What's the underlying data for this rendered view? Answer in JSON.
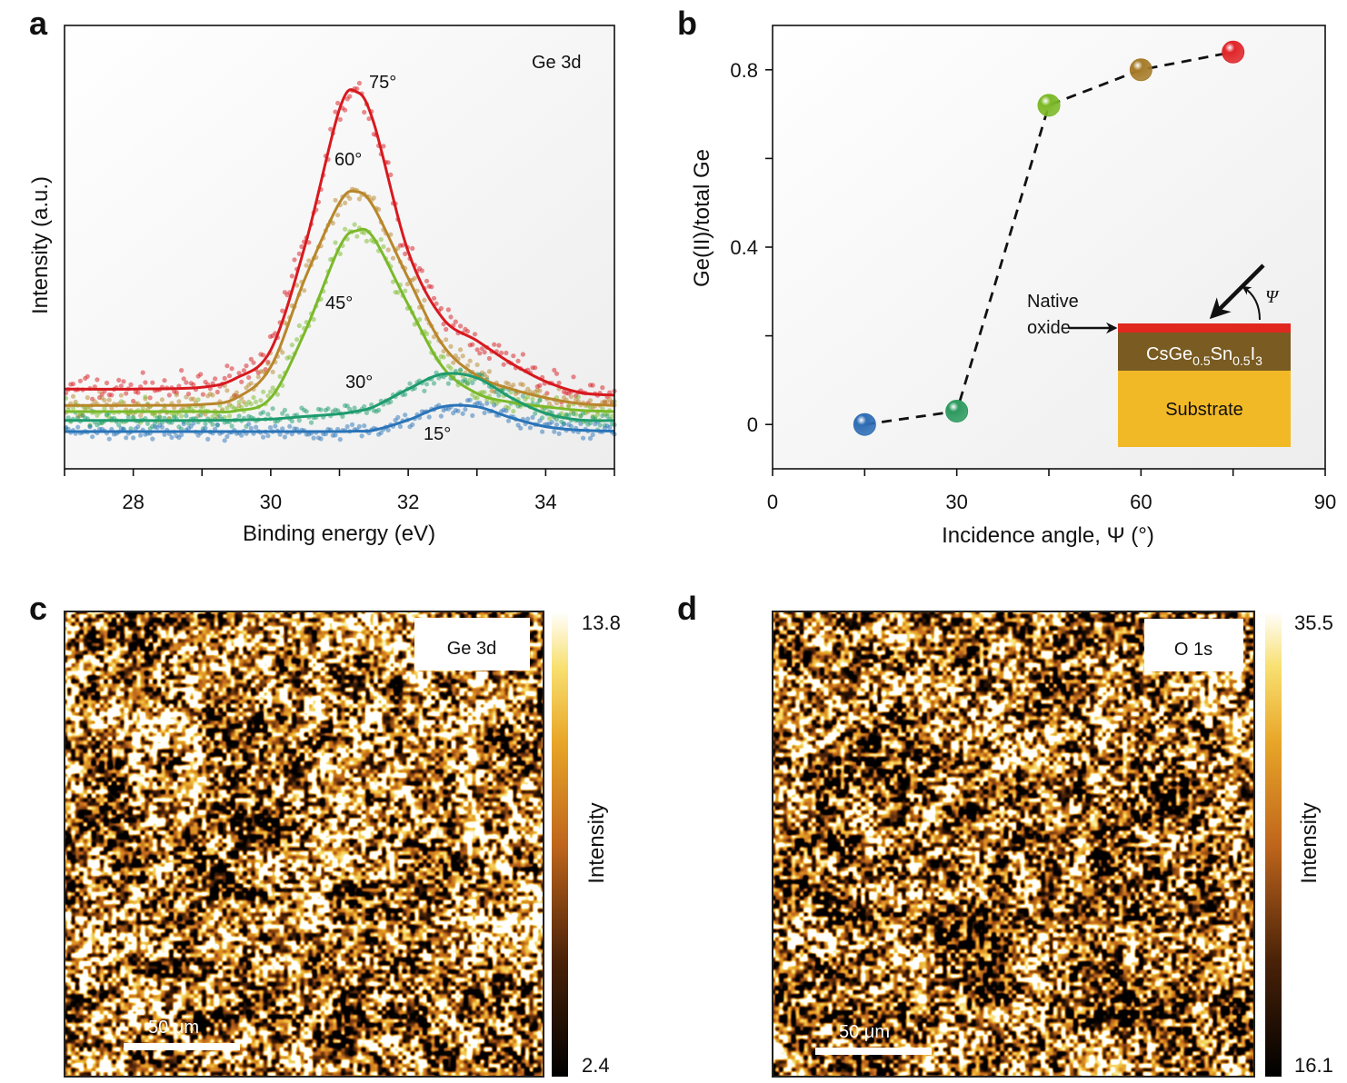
{
  "panel_letters": {
    "a": "a",
    "b": "b",
    "c": "c",
    "d": "d"
  },
  "chart_data": [
    {
      "type": "line",
      "panel": "a",
      "annotation": "Ge 3d",
      "xlabel": "Binding energy (eV)",
      "ylabel": "Intensity (a.u.)",
      "xlim": [
        27,
        35
      ],
      "ylim": [
        0,
        1
      ],
      "xticks": [
        28,
        30,
        32,
        34
      ],
      "grid": false,
      "x": [
        27,
        28,
        29,
        29.5,
        30,
        30.5,
        31,
        31.25,
        31.5,
        32,
        32.5,
        33,
        33.5,
        34,
        34.5,
        35
      ],
      "series": [
        {
          "name": "75°",
          "color": "#d7191f",
          "values": [
            0.18,
            0.18,
            0.184,
            0.205,
            0.268,
            0.504,
            0.811,
            0.85,
            0.78,
            0.49,
            0.34,
            0.289,
            0.238,
            0.197,
            0.172,
            0.166
          ]
        },
        {
          "name": "60°",
          "color": "#b8862a",
          "values": [
            0.143,
            0.143,
            0.145,
            0.16,
            0.23,
            0.43,
            0.6,
            0.625,
            0.59,
            0.43,
            0.28,
            0.21,
            0.18,
            0.16,
            0.147,
            0.143
          ]
        },
        {
          "name": "45°",
          "color": "#7ab929",
          "values": [
            0.129,
            0.129,
            0.129,
            0.131,
            0.16,
            0.31,
            0.5,
            0.537,
            0.52,
            0.37,
            0.23,
            0.17,
            0.15,
            0.14,
            0.132,
            0.129
          ]
        },
        {
          "name": "30°",
          "color": "#1e9b6e",
          "values": [
            0.109,
            0.109,
            0.109,
            0.11,
            0.112,
            0.118,
            0.124,
            0.13,
            0.14,
            0.18,
            0.214,
            0.205,
            0.16,
            0.125,
            0.11,
            0.109
          ]
        },
        {
          "name": "15°",
          "color": "#2a74b8",
          "values": [
            0.084,
            0.084,
            0.084,
            0.084,
            0.084,
            0.084,
            0.084,
            0.085,
            0.087,
            0.11,
            0.14,
            0.14,
            0.115,
            0.095,
            0.087,
            0.085
          ]
        }
      ]
    },
    {
      "type": "scatter",
      "panel": "b",
      "xlabel": "Incidence angle, Ψ (°)",
      "ylabel": "Ge(II)/total Ge",
      "xlim": [
        0,
        90
      ],
      "ylim": [
        -0.1,
        0.9
      ],
      "xticks": [
        0,
        30,
        60,
        90
      ],
      "yticks": [
        0,
        0.4,
        0.8
      ],
      "grid": false,
      "connector": "dashed",
      "x": [
        15,
        30,
        45,
        60,
        75
      ],
      "y": [
        0.0,
        0.03,
        0.72,
        0.8,
        0.84
      ],
      "colors": [
        "#2f6db5",
        "#2e9a5f",
        "#7cb928",
        "#a67c2a",
        "#e0262a"
      ],
      "inset": {
        "oxide_label_line1": "Native",
        "oxide_label_line2": "oxide",
        "layer_parts": [
          "CsGe",
          "0.5",
          "Sn",
          "0.5",
          "I",
          "3"
        ],
        "substrate": "Substrate",
        "angle_symbol": "Ψ",
        "oxide_color": "#e0281e",
        "layer_color": "#7a5c22",
        "substrate_color": "#f2b927"
      }
    },
    {
      "type": "heatmap",
      "panel": "c",
      "label": "Ge 3d",
      "colorbar_max": "13.8",
      "colorbar_min": "2.4",
      "colorbar_label": "Intensity",
      "scalebar": "50 μm"
    },
    {
      "type": "heatmap",
      "panel": "d",
      "label": "O 1s",
      "colorbar_max": "35.5",
      "colorbar_min": "16.1",
      "colorbar_label": "Intensity",
      "scalebar": "50 μm"
    }
  ]
}
